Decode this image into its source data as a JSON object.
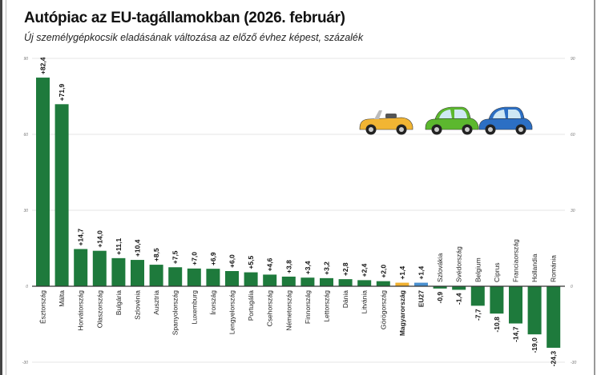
{
  "title": "Autópiac az EU-tagállamokban (2026. február)",
  "subtitle": "Új személygépkocsik eladásának változása az előző évhez képest, százalék",
  "chart_data": {
    "type": "bar",
    "title": "Autópiac az EU-tagállamokban (2026. február)",
    "subtitle": "Új személygépkocsik eladásának változása az előző évhez képest, százalék",
    "ylim": [
      -30,
      90
    ],
    "yticks": [
      90,
      60,
      30,
      0,
      -30
    ],
    "grid": true,
    "categories": [
      "Észtország",
      "Málta",
      "Horvátország",
      "Olaszország",
      "Bulgária",
      "Szlovénia",
      "Ausztria",
      "Spanyolország",
      "Luxemburg",
      "Írország",
      "Lengyelország",
      "Portugália",
      "Csehország",
      "Németország",
      "Finnország",
      "Lettország",
      "Dánia",
      "Litvánia",
      "Görögország",
      "Magyarország",
      "EU27",
      "Szlovákia",
      "Svédország",
      "Belgium",
      "Ciprus",
      "Franciaország",
      "Hollandia",
      "Románia"
    ],
    "values": [
      82.4,
      71.9,
      14.7,
      14.0,
      11.1,
      10.4,
      8.5,
      7.5,
      7.0,
      6.9,
      6.0,
      5.5,
      4.6,
      3.8,
      3.4,
      3.2,
      2.8,
      2.4,
      2.0,
      1.4,
      1.4,
      -0.9,
      -1.4,
      -7.7,
      -10.8,
      -14.7,
      -19.0,
      -24.3
    ],
    "labels": [
      "+82,4",
      "+71,9",
      "+14,7",
      "+14,0",
      "+11,1",
      "+10,4",
      "+8,5",
      "+7,5",
      "+7,0",
      "+6,9",
      "+6,0",
      "+5,5",
      "+4,6",
      "+3,8",
      "+3,4",
      "+3,2",
      "+2,8",
      "+2,4",
      "+2,0",
      "+1,4",
      "+1,4",
      "-0,9",
      "-1,4",
      "-7,7",
      "-10,8",
      "-14,7",
      "-19,0",
      "-24,3"
    ],
    "highlight": {
      "Magyarország": "#f0b030",
      "EU27": "#4a90d0"
    },
    "bold_categories": [
      "Magyarország",
      "EU27"
    ],
    "colors": {
      "bar": "#1e7a3c",
      "grid": "#e4e4e4",
      "axis": "#333333"
    }
  },
  "illustration": {
    "icons": [
      "yellow-convertible-car-icon",
      "green-car-icon",
      "blue-car-icon"
    ]
  }
}
